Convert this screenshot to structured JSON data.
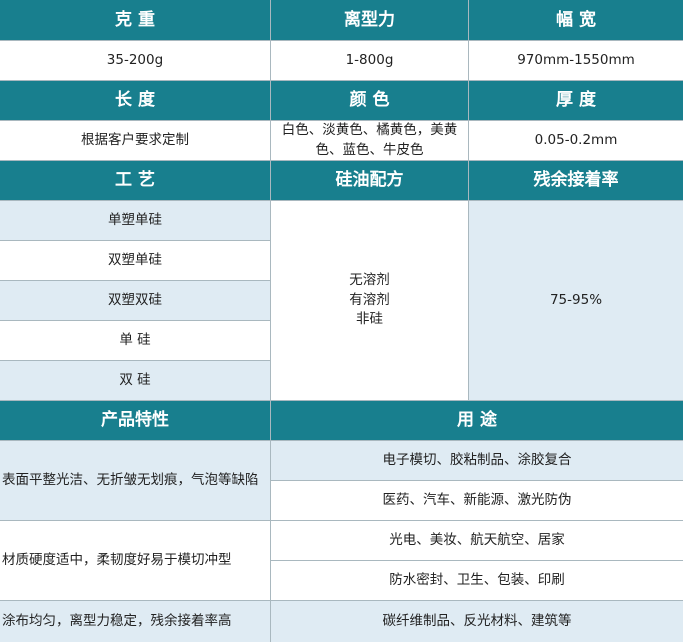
{
  "table": {
    "header_row_1": [
      "克 重",
      "离型力",
      "幅 宽"
    ],
    "row_1": [
      "35-200g",
      "1-800g",
      "970mm-1550mm"
    ],
    "header_row_2": [
      "长 度",
      "颜 色",
      "厚 度"
    ],
    "row_2": [
      "根据客户要求定制",
      "白色、淡黄色、橘黄色，美黄色、蓝色、牛皮色",
      "0.05-0.2mm"
    ],
    "header_row_3": [
      "工 艺",
      "硅油配方",
      "残余接着率"
    ],
    "processes": [
      "单塑单硅",
      "双塑单硅",
      "双塑双硅",
      "单 硅",
      "双 硅"
    ],
    "silicone_formulas": [
      "无溶剂",
      "有溶剂",
      "非硅"
    ],
    "residual_adhesion": "75-95%",
    "header_row_4": [
      "产品特性",
      "用 途"
    ],
    "features": [
      "表面平整光洁、无折皱无划痕，气泡等缺陷",
      "材质硬度适中，柔韧度好易于模切冲型",
      "涂布均匀，离型力稳定，残余接着率高"
    ],
    "uses": [
      "电子模切、胶粘制品、涂胶复合",
      "医药、汽车、新能源、激光防伪",
      "光电、美妆、航天航空、居家",
      "防水密封、卫生、包装、印刷",
      "碳纤维制品、反光材料、建筑等"
    ]
  }
}
